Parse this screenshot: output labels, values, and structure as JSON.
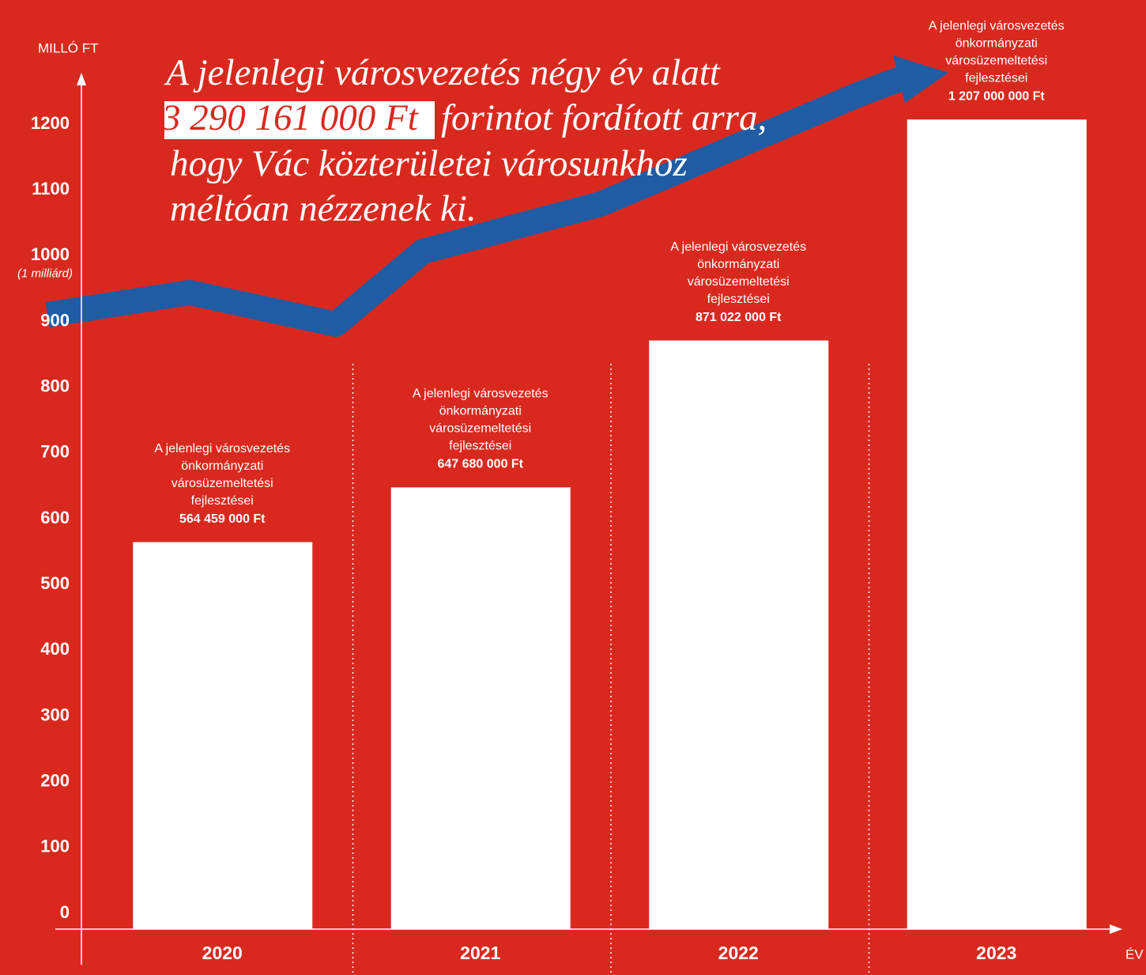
{
  "chart_data": {
    "type": "bar",
    "headline": [
      "A jelenlegi városvezetés négy év alatt",
      "3 290 161 000 Ft",
      "forintot fordított arra,",
      "hogy Vác közterületei városunkhoz",
      "méltóan nézzenek ki."
    ],
    "y_axis_label": "MILLÓ FT",
    "x_axis_label": "ÉV",
    "categories": [
      "2020",
      "2021",
      "2022",
      "2023"
    ],
    "values": [
      564.459,
      647.68,
      871.022,
      1207
    ],
    "value_labels": [
      "564 459 000 Ft",
      "647 680 000 Ft",
      "871 022 000 Ft",
      "1 207 000 000 Ft"
    ],
    "bar_note": [
      "A jelenlegi városvezetés",
      "önkormányzati",
      "városüzemeltetési",
      "fejlesztései"
    ],
    "color": "#ffffff",
    "ylim": [
      0,
      1200
    ],
    "yticks": [
      0,
      100,
      200,
      300,
      400,
      500,
      600,
      700,
      800,
      900,
      {
        "value": 1000,
        "label": "1000",
        "note": "(1 milliárd)"
      },
      1100,
      1200
    ],
    "grid": false
  }
}
